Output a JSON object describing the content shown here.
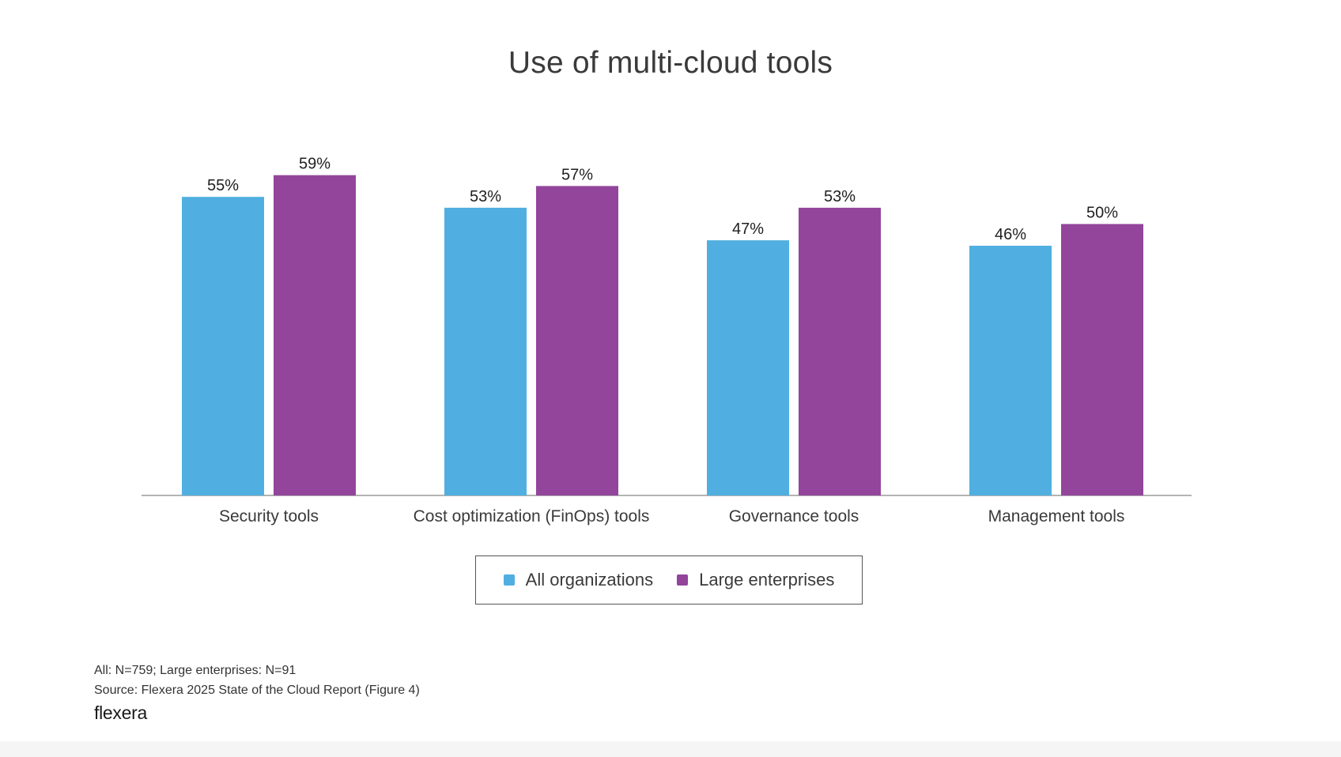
{
  "colors": {
    "all_organizations": "#50afe0",
    "large_enterprises": "#92459b",
    "axis": "#9a9a9a",
    "text": "#333333"
  },
  "chart_data": {
    "type": "bar",
    "title": "Use of multi-cloud tools",
    "categories": [
      "Security tools",
      "Cost optimization (FinOps) tools",
      "Governance tools",
      "Management tools"
    ],
    "series": [
      {
        "name": "All organizations",
        "values": [
          55,
          53,
          47,
          46
        ],
        "labels": [
          "55%",
          "53%",
          "47%",
          "46%"
        ]
      },
      {
        "name": "Large enterprises",
        "values": [
          59,
          57,
          53,
          50
        ],
        "labels": [
          "59%",
          "57%",
          "53%",
          "50%"
        ]
      }
    ],
    "ylim": [
      0,
      100
    ],
    "grid": false,
    "legend_position": "bottom-center"
  },
  "legend": {
    "all_label": "All organizations",
    "large_label": "Large enterprises"
  },
  "footnotes": {
    "sample": "All: N=759; Large enterprises: N=91",
    "source": "Source: Flexera 2025 State of the Cloud Report (Figure 4)"
  },
  "brand": {
    "name": "flexera"
  }
}
